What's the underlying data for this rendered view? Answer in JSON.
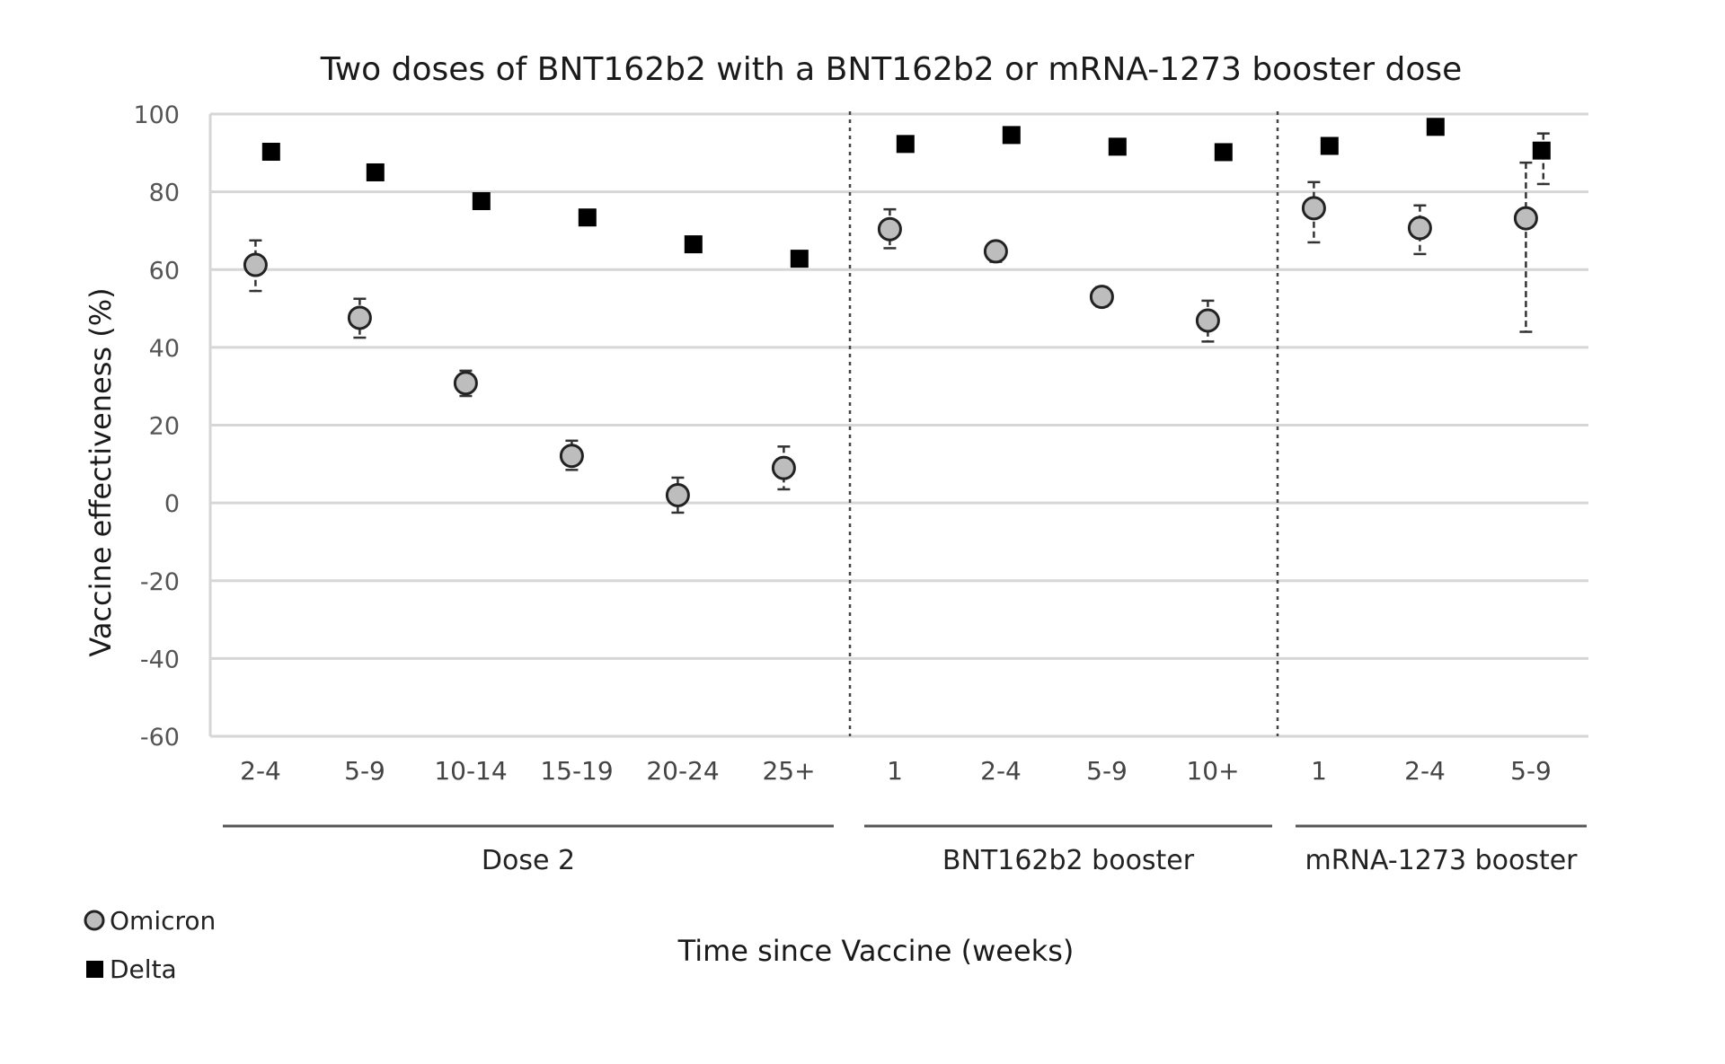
{
  "chart_data": {
    "type": "scatter",
    "title": "Two doses of BNT162b2 with a BNT162b2 or mRNA-1273 booster dose",
    "xlabel": "Time since Vaccine (weeks)",
    "ylabel": "Vaccine effectiveness (%)",
    "ylim": [
      -60,
      100
    ],
    "yticks": [
      "100",
      "80",
      "60",
      "40",
      "20",
      "0",
      "-20",
      "-40",
      "-60"
    ],
    "grid": true,
    "legend_position": "bottom-left",
    "categories": [
      "2-4",
      "5-9",
      "10-14",
      "15-19",
      "20-24",
      "25+",
      "1",
      "2-4",
      "5-9",
      "10+",
      "1",
      "2-4",
      "5-9"
    ],
    "groups": [
      {
        "label": "Dose 2",
        "categories": [
          "2-4",
          "5-9",
          "10-14",
          "15-19",
          "20-24",
          "25+"
        ]
      },
      {
        "label": "BNT162b2 booster",
        "categories": [
          "1",
          "2-4",
          "5-9",
          "10+"
        ]
      },
      {
        "label": "mRNA-1273 booster",
        "categories": [
          "1",
          "2-4",
          "5-9"
        ]
      }
    ],
    "series": [
      {
        "name": "Omicron",
        "marker": "circle",
        "color": "#bdbdbd",
        "values": [
          61.2,
          47.6,
          30.8,
          12.1,
          2.0,
          9.0,
          70.4,
          64.7,
          53.0,
          46.9,
          75.8,
          70.7,
          73.2
        ],
        "ci_low": [
          54.5,
          42.5,
          27.5,
          8.5,
          -2.5,
          3.5,
          65.5,
          62.0,
          50.5,
          41.5,
          67.0,
          64.0,
          44.0
        ],
        "ci_high": [
          67.5,
          52.5,
          34.0,
          16.0,
          6.5,
          14.5,
          75.5,
          67.0,
          55.5,
          52.0,
          82.5,
          76.5,
          87.5
        ]
      },
      {
        "name": "Delta",
        "marker": "square",
        "color": "#000000",
        "values": [
          90.3,
          85.0,
          77.6,
          73.4,
          66.5,
          62.8,
          92.3,
          94.6,
          91.6,
          90.2,
          91.8,
          96.7,
          90.6
        ],
        "ci_low": [
          null,
          null,
          null,
          null,
          null,
          null,
          null,
          null,
          null,
          null,
          null,
          null,
          82.0
        ],
        "ci_high": [
          null,
          null,
          null,
          null,
          null,
          null,
          null,
          null,
          null,
          null,
          null,
          null,
          95.0
        ]
      }
    ]
  }
}
